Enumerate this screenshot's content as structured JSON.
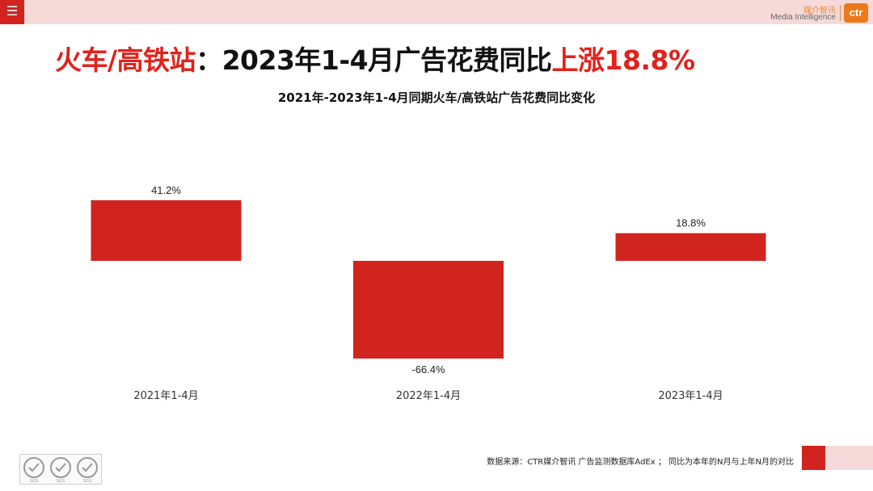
{
  "header": {
    "menu_icon": "☰",
    "logo_cn": "媒介智讯",
    "logo_en": "Media Intelligence",
    "logo_mark": "ctr"
  },
  "headline": {
    "part1": "火车/高铁站",
    "part2": "：2023年1-4月广告花费同比",
    "part3": "上涨18.8%"
  },
  "colors": {
    "accent": "#d1241f",
    "headline_red": "#e0221b",
    "topbar": "#f6dada"
  },
  "chart_data": {
    "type": "bar",
    "title": "2021年-2023年1-4月同期火车/高铁站广告花费同比变化",
    "categories": [
      "2021年1-4月",
      "2022年1-4月",
      "2023年1-4月"
    ],
    "values": [
      41.2,
      -66.4,
      18.8
    ],
    "value_labels": [
      "41.2%",
      "-66.4%",
      "18.8%"
    ],
    "unit": "%",
    "bar_color": "#d1241f",
    "grid": false,
    "legend": "none"
  },
  "footer": {
    "source": "数据来源：CTR媒介智讯 广告监测数据库AdEx ； 同比为本年的N月与上年N月的对比",
    "badge_text": "SGS"
  }
}
